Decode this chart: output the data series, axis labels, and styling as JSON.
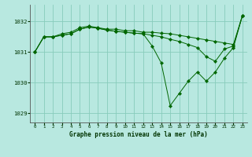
{
  "title": "Graphe pression niveau de la mer (hPa)",
  "bg_color": "#b8e8e0",
  "grid_color": "#88ccbb",
  "line_color": "#006600",
  "marker_color": "#006600",
  "ylim": [
    1028.7,
    1032.55
  ],
  "yticks": [
    1029,
    1030,
    1031,
    1032
  ],
  "xlim": [
    -0.5,
    23.5
  ],
  "xticks": [
    0,
    1,
    2,
    3,
    4,
    5,
    6,
    7,
    8,
    9,
    10,
    11,
    12,
    13,
    14,
    15,
    16,
    17,
    18,
    19,
    20,
    21,
    22,
    23
  ],
  "series": [
    {
      "x": [
        0,
        1,
        2,
        3,
        4,
        5,
        6,
        7,
        8,
        9,
        10,
        11,
        12,
        13,
        14,
        15,
        16,
        17,
        18,
        19,
        20,
        21,
        22,
        23
      ],
      "y": [
        1031.0,
        1031.5,
        1031.5,
        1031.6,
        1031.65,
        1031.8,
        1031.85,
        1031.8,
        1031.75,
        1031.75,
        1031.7,
        1031.7,
        1031.65,
        1031.65,
        1031.62,
        1031.6,
        1031.55,
        1031.5,
        1031.45,
        1031.4,
        1031.35,
        1031.3,
        1031.25,
        1032.2
      ]
    },
    {
      "x": [
        0,
        1,
        2,
        3,
        4,
        5,
        6,
        7,
        8,
        9,
        10,
        11,
        12,
        13,
        14,
        15,
        16,
        17,
        18,
        19,
        20,
        21,
        22,
        23
      ],
      "y": [
        1031.0,
        1031.5,
        1031.5,
        1031.55,
        1031.6,
        1031.75,
        1031.82,
        1031.78,
        1031.72,
        1031.68,
        1031.65,
        1031.62,
        1031.6,
        1031.55,
        1031.5,
        1031.42,
        1031.35,
        1031.25,
        1031.15,
        1030.85,
        1030.7,
        1031.1,
        1031.2,
        1032.2
      ]
    },
    {
      "x": [
        0,
        1,
        2,
        3,
        4,
        5,
        6,
        7,
        8,
        9,
        10,
        11,
        12,
        13,
        14,
        15,
        16,
        17,
        18,
        19,
        20,
        21,
        22,
        23
      ],
      "y": [
        1031.0,
        1031.5,
        1031.5,
        1031.55,
        1031.6,
        1031.75,
        1031.82,
        1031.78,
        1031.72,
        1031.68,
        1031.65,
        1031.62,
        1031.6,
        1031.2,
        1030.65,
        1029.25,
        1029.65,
        1030.05,
        1030.35,
        1030.05,
        1030.35,
        1030.8,
        1031.15,
        1032.2
      ]
    }
  ]
}
